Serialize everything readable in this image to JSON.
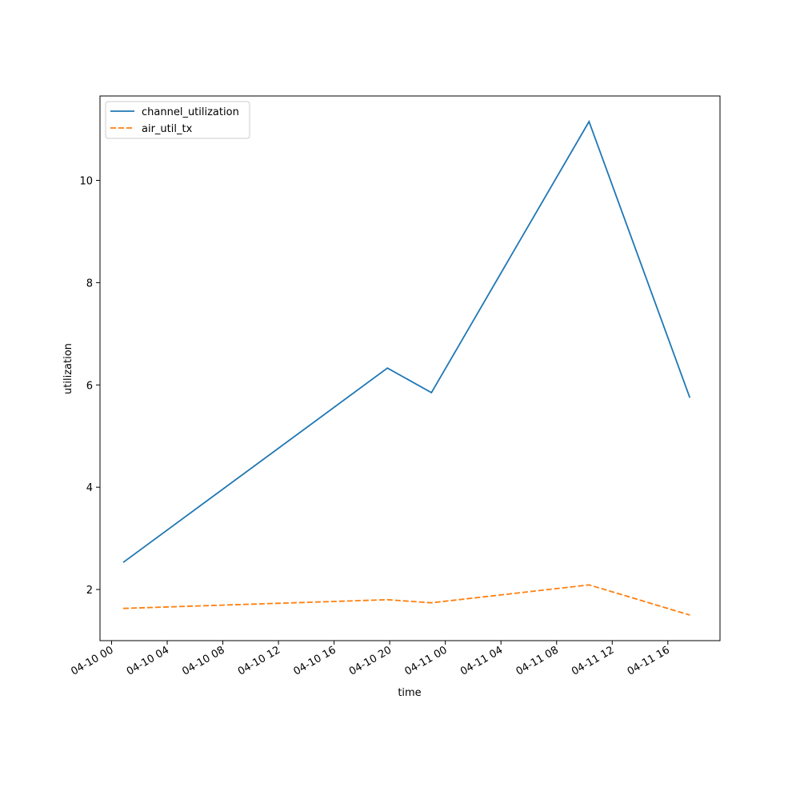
{
  "chart_data": {
    "type": "line",
    "title": "",
    "xlabel": "time",
    "ylabel": "utilization",
    "x_tick_labels": [
      "04-10 00",
      "04-10 04",
      "04-10 08",
      "04-10 12",
      "04-10 16",
      "04-10 20",
      "04-11 00",
      "04-11 04",
      "04-11 08",
      "04-11 12",
      "04-11 16"
    ],
    "x_ticks": [
      "2024-04-10T00:00",
      "2024-04-10T04:00",
      "2024-04-10T08:00",
      "2024-04-10T12:00",
      "2024-04-10T16:00",
      "2024-04-10T20:00",
      "2024-04-11T00:00",
      "2024-04-11T04:00",
      "2024-04-11T08:00",
      "2024-04-11T12:00",
      "2024-04-11T16:00"
    ],
    "y_ticks": [
      2,
      4,
      6,
      8,
      10
    ],
    "xlim": [
      "2024-04-09T23:10",
      "2024-04-11T19:45"
    ],
    "ylim": [
      1.0,
      11.65
    ],
    "x": [
      "2024-04-10T00:50",
      "2024-04-10T19:50",
      "2024-04-10T23:00",
      "2024-04-11T10:20",
      "2024-04-11T17:35"
    ],
    "series": [
      {
        "name": "channel_utilization",
        "values": [
          2.53,
          6.33,
          5.85,
          11.15,
          5.75
        ],
        "color": "#1f77b4",
        "dashed": false
      },
      {
        "name": "air_util_tx",
        "values": [
          1.63,
          1.8,
          1.74,
          2.09,
          1.5
        ],
        "color": "#ff7f0e",
        "dashed": true
      }
    ],
    "grid": false,
    "legend_position": "top-left"
  }
}
